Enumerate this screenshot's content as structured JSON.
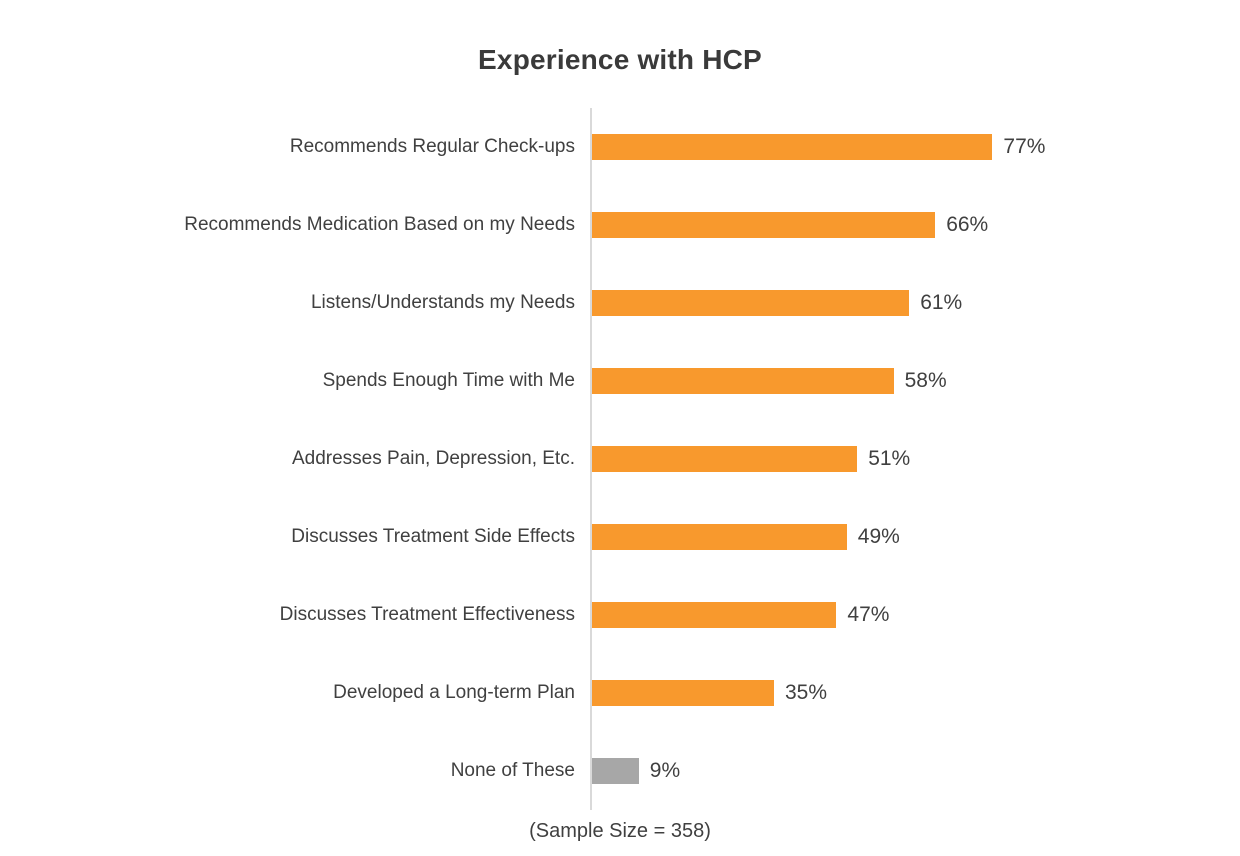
{
  "chart_data": {
    "type": "bar",
    "orientation": "horizontal",
    "title": "Experience with HCP",
    "categories": [
      "Recommends Regular Check-ups",
      "Recommends Medication Based on my Needs",
      "Listens/Understands my Needs",
      "Spends Enough Time with Me",
      "Addresses Pain, Depression, Etc.",
      "Discusses Treatment Side Effects",
      "Discusses Treatment Effectiveness",
      "Developed a Long-term Plan",
      "None of These"
    ],
    "values": [
      77,
      66,
      61,
      58,
      51,
      49,
      47,
      35,
      9
    ],
    "unit": "%",
    "data_labels": [
      "77%",
      "66%",
      "61%",
      "58%",
      "51%",
      "49%",
      "47%",
      "35%",
      "9%"
    ],
    "bar_colors": [
      "#F8992D",
      "#F8992D",
      "#F8992D",
      "#F8992D",
      "#F8992D",
      "#F8992D",
      "#F8992D",
      "#F8992D",
      "#A7A7A7"
    ],
    "xlim": [
      0,
      100
    ],
    "grid": false,
    "legend_position": "none",
    "axis_line_color": "#d9d9d9",
    "footnote": "(Sample Size = 358)"
  },
  "colors": {
    "bar_orange": "#F8992D",
    "bar_gray": "#A7A7A7",
    "axis": "#d9d9d9",
    "text": "#404040",
    "background": "#ffffff"
  }
}
